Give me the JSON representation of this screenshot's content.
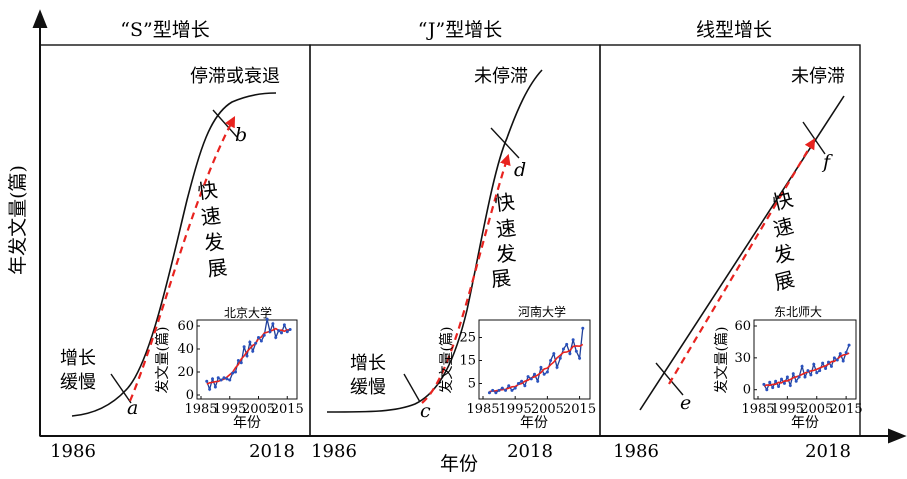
{
  "figure": {
    "y_axis_label": "年发文量(篇)",
    "x_axis_label": "年份"
  },
  "chart_data": [
    {
      "type": "line",
      "title": "“S”型增长",
      "x_ticks": [
        "1986",
        "2018"
      ],
      "annotations": {
        "slow_label": [
          "增长",
          "缓慢"
        ],
        "fast_label": [
          "快",
          "速",
          "发",
          "展"
        ],
        "end_label": "停滞或衰退",
        "start_point": "a",
        "end_point": "b"
      },
      "inset": {
        "title": "北京大学",
        "ylabel": "发文量(篇)",
        "xlabel": "年份",
        "x_ticks": [
          "1985",
          "1995",
          "2005",
          "2015"
        ],
        "y_ticks": [
          "0",
          "20",
          "40",
          "60"
        ],
        "ylim": [
          0,
          60
        ],
        "xlim": [
          1985,
          2017
        ],
        "x": [
          1987,
          1988,
          1989,
          1990,
          1991,
          1992,
          1993,
          1994,
          1995,
          1996,
          1997,
          1998,
          1999,
          2000,
          2001,
          2002,
          2003,
          2004,
          2005,
          2006,
          2007,
          2008,
          2009,
          2010,
          2011,
          2012,
          2013,
          2014,
          2015,
          2016
        ],
        "values": [
          12,
          5,
          14,
          7,
          15,
          13,
          15,
          14,
          13,
          19,
          20,
          30,
          28,
          42,
          34,
          46,
          38,
          45,
          50,
          47,
          52,
          66,
          55,
          62,
          50,
          56,
          54,
          61,
          55,
          57
        ]
      }
    },
    {
      "type": "line",
      "title": "“J”型增长",
      "x_ticks": [
        "1986",
        "2018"
      ],
      "annotations": {
        "slow_label": [
          "增长",
          "缓慢"
        ],
        "fast_label": [
          "快",
          "速",
          "发",
          "展"
        ],
        "end_label": "未停滞",
        "start_point": "c",
        "end_point": "d"
      },
      "inset": {
        "title": "河南大学",
        "ylabel": "发文量(篇)",
        "xlabel": "年份",
        "x_ticks": [
          "1985",
          "1995",
          "2005",
          "2015"
        ],
        "y_ticks": [
          "5",
          "15",
          "25"
        ],
        "ylim": [
          0,
          30
        ],
        "xlim": [
          1985,
          2017
        ],
        "x": [
          1987,
          1988,
          1989,
          1990,
          1991,
          1992,
          1993,
          1994,
          1995,
          1996,
          1997,
          1998,
          1999,
          2000,
          2001,
          2002,
          2003,
          2004,
          2005,
          2006,
          2007,
          2008,
          2009,
          2010,
          2011,
          2012,
          2013,
          2014,
          2015,
          2016
        ],
        "values": [
          1,
          2,
          1,
          2,
          3,
          2,
          4,
          2,
          3,
          5,
          6,
          4,
          8,
          7,
          9,
          6,
          12,
          9,
          10,
          15,
          18,
          12,
          16,
          20,
          22,
          18,
          24,
          19,
          16,
          29
        ]
      }
    },
    {
      "type": "line",
      "title": "线型增长",
      "x_ticks": [
        "1986",
        "2018"
      ],
      "annotations": {
        "fast_label": [
          "快",
          "速",
          "发",
          "展"
        ],
        "end_label": "未停滞",
        "start_point": "e",
        "end_point": "f"
      },
      "inset": {
        "title": "东北师大",
        "ylabel": "发文量(篇)",
        "xlabel": "年份",
        "x_ticks": [
          "1985",
          "1995",
          "2005",
          "2015"
        ],
        "y_ticks": [
          "0",
          "30",
          "60"
        ],
        "ylim": [
          -5,
          60
        ],
        "xlim": [
          1985,
          2017
        ],
        "x": [
          1987,
          1988,
          1989,
          1990,
          1991,
          1992,
          1993,
          1994,
          1995,
          1996,
          1997,
          1998,
          1999,
          2000,
          2001,
          2002,
          2003,
          2004,
          2005,
          2006,
          2007,
          2008,
          2009,
          2010,
          2011,
          2012,
          2013,
          2014,
          2015,
          2016
        ],
        "values": [
          5,
          0,
          7,
          2,
          8,
          3,
          10,
          6,
          12,
          4,
          15,
          8,
          12,
          22,
          12,
          18,
          14,
          24,
          16,
          18,
          25,
          20,
          26,
          22,
          30,
          28,
          34,
          27,
          35,
          42
        ]
      }
    }
  ],
  "colors": {
    "curve": "#111111",
    "trend": "#e8231f",
    "inset_series": "#1f3f9a",
    "point": "#2a52be"
  }
}
